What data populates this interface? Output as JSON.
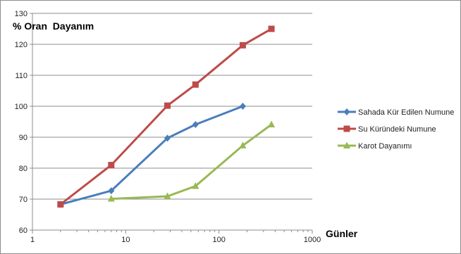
{
  "chart_data": {
    "type": "line",
    "title": "",
    "ylabel": "% Oran  Dayanım",
    "xlabel": "Günler",
    "x_scale": "log",
    "xlim": [
      1,
      1000
    ],
    "ylim": [
      60,
      130
    ],
    "x_ticks": [
      "1",
      "10",
      "100",
      "1000"
    ],
    "y_ticks": [
      "60",
      "70",
      "80",
      "90",
      "100",
      "110",
      "120",
      "130"
    ],
    "grid": "horizontal",
    "legend": "right",
    "series": [
      {
        "name": "Sahada Kür Edilen Numune",
        "color": "#4a7ebb",
        "marker": "diamond",
        "points": [
          {
            "x": 2,
            "y": 68.3
          },
          {
            "x": 7,
            "y": 72.7
          },
          {
            "x": 28,
            "y": 89.7
          },
          {
            "x": 56,
            "y": 94.1
          },
          {
            "x": 180,
            "y": 100.0
          }
        ]
      },
      {
        "name": "Su Küründeki Numune",
        "color": "#be4b48",
        "marker": "square",
        "points": [
          {
            "x": 2,
            "y": 68.3
          },
          {
            "x": 7,
            "y": 81.0
          },
          {
            "x": 28,
            "y": 100.2
          },
          {
            "x": 56,
            "y": 107.0
          },
          {
            "x": 180,
            "y": 119.7
          },
          {
            "x": 365,
            "y": 125.0
          }
        ]
      },
      {
        "name": "Karot Dayanımı",
        "color": "#98b954",
        "marker": "triangle",
        "points": [
          {
            "x": 7,
            "y": 70.1
          },
          {
            "x": 28,
            "y": 70.9
          },
          {
            "x": 56,
            "y": 74.2
          },
          {
            "x": 180,
            "y": 87.3
          },
          {
            "x": 365,
            "y": 94.1
          }
        ]
      }
    ]
  }
}
